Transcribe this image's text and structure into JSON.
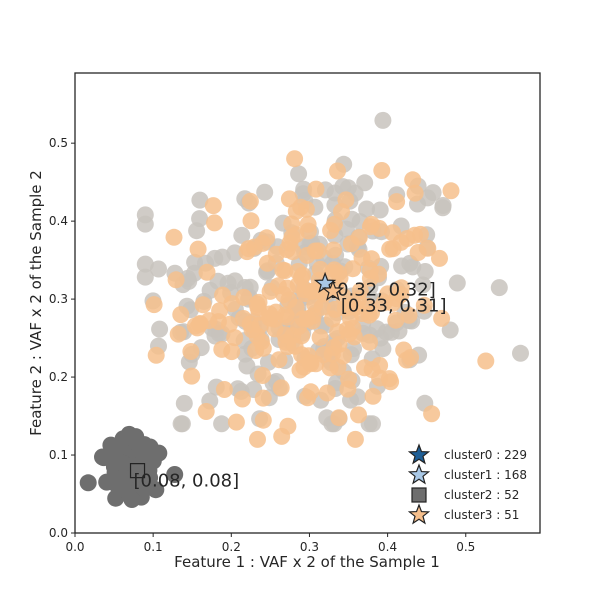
{
  "chart_data": {
    "type": "scatter",
    "title": "",
    "xlabel": "Feature 1 : VAF x 2 of the Sample 1",
    "ylabel": "Feature 2 : VAF x 2 of the Sample 2",
    "xlim": [
      0.0,
      0.595
    ],
    "ylim": [
      0.0,
      0.59
    ],
    "xticks": [
      "0.0",
      "0.1",
      "0.2",
      "0.3",
      "0.4",
      "0.5"
    ],
    "yticks": [
      "0.0",
      "0.1",
      "0.2",
      "0.3",
      "0.4",
      "0.5"
    ],
    "grid": false,
    "legend_position": "bottom-right",
    "series": [
      {
        "name": "cluster0 : 229",
        "color": "#c8c3bd",
        "marker": "star",
        "count": 229
      },
      {
        "name": "cluster1 : 168",
        "color": "#f6bf8c",
        "marker": "star",
        "count": 168
      },
      {
        "name": "cluster2 : 52",
        "color": "#6e6e6e",
        "marker": "square",
        "count": 52
      },
      {
        "name": "cluster3 : 51",
        "color": "#f6bf8c",
        "marker": "star",
        "count": 51
      }
    ],
    "legend_marker_colors": [
      "#1f5f96",
      "#a9c8e6",
      "#6e6e6e",
      "#f6bf8c"
    ],
    "centers": [
      {
        "label": "[0.32, 0.32]",
        "x": 0.32,
        "y": 0.32,
        "marker": "star",
        "color": "#a9c8e6"
      },
      {
        "label": "[0.33, 0.31]",
        "x": 0.33,
        "y": 0.31,
        "marker": "star",
        "color": "#f6bf8c"
      },
      {
        "label": "[0.08, 0.08]",
        "x": 0.08,
        "y": 0.08,
        "marker": "square",
        "color": "#6e6e6e"
      }
    ]
  }
}
